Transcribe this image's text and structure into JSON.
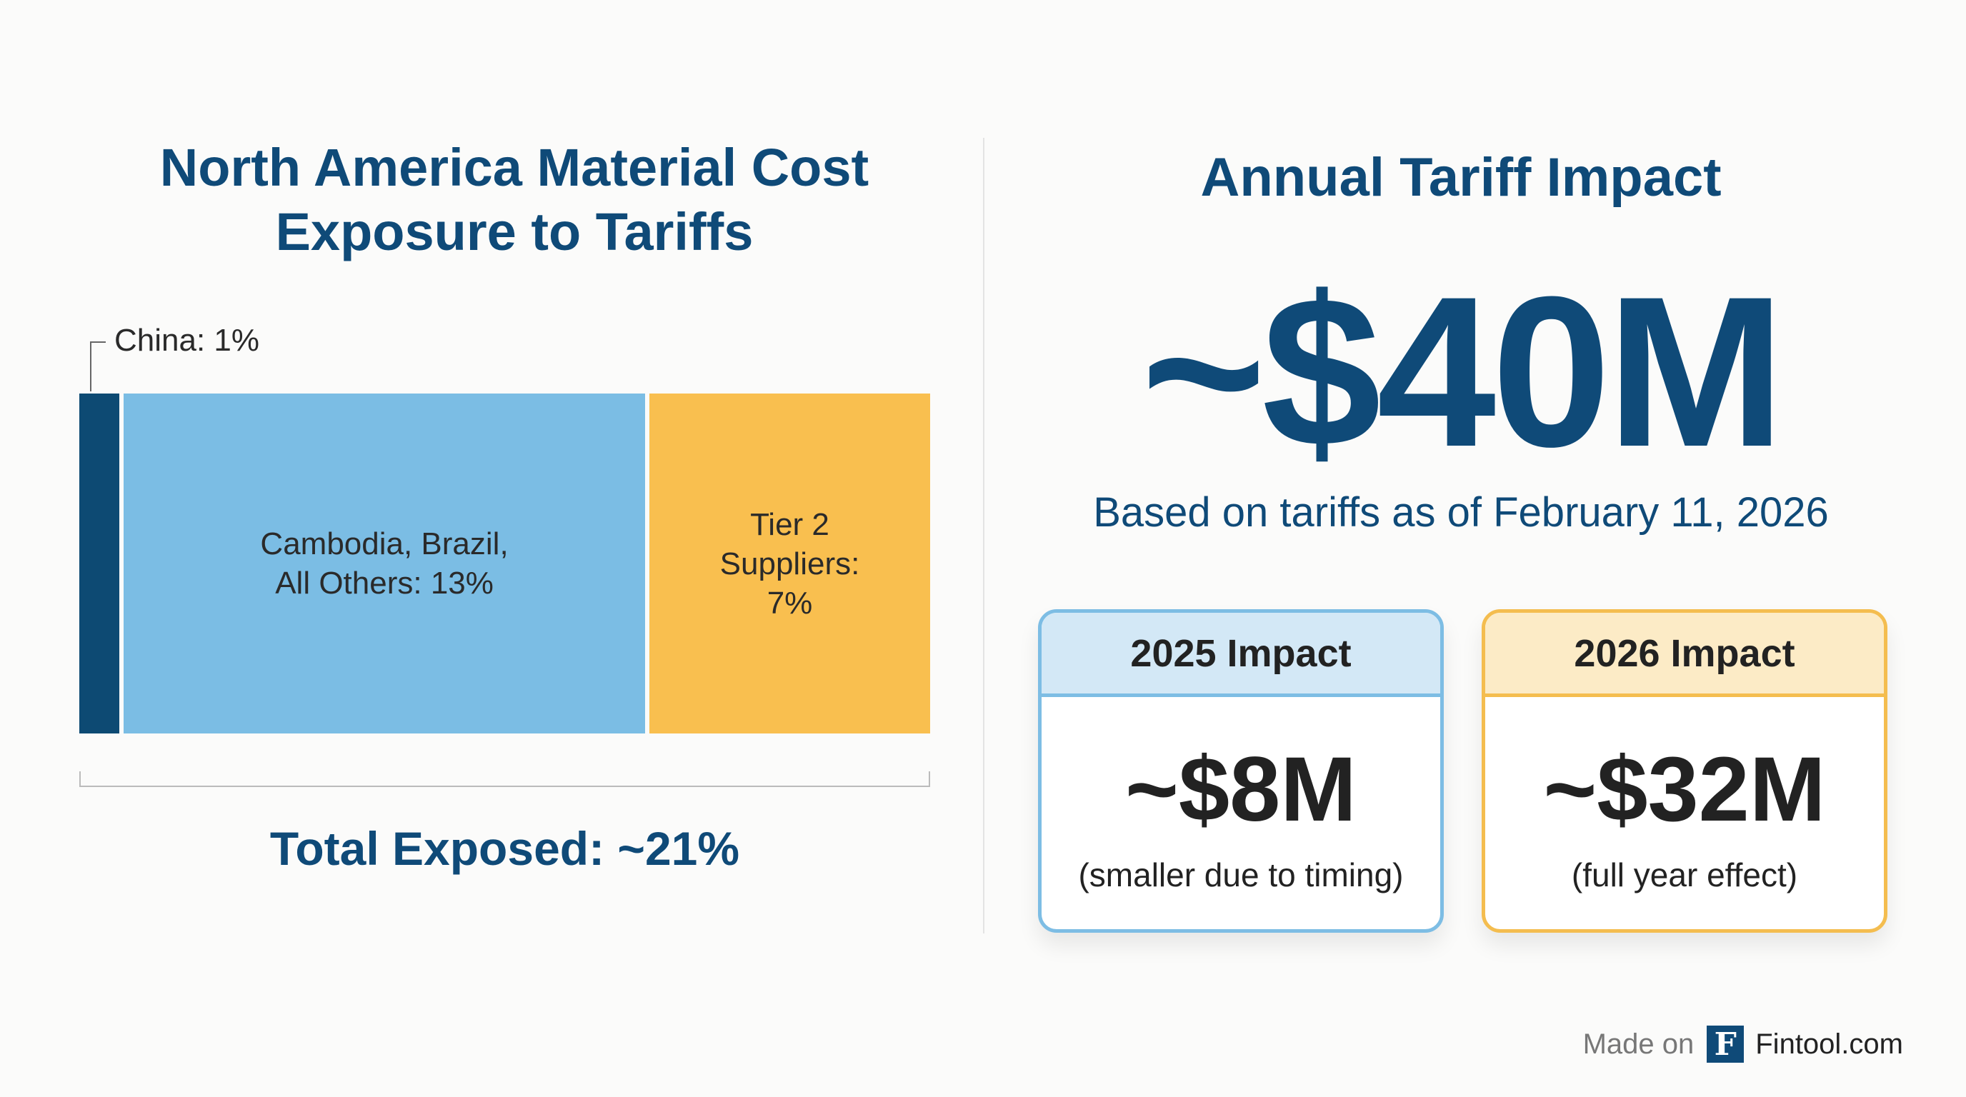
{
  "chart_data": {
    "type": "bar",
    "orientation": "stacked-horizontal",
    "title": "North America Material Cost Exposure to Tariffs",
    "unit": "%",
    "categories": [
      "China",
      "Cambodia, Brazil, All Others",
      "Tier 2 Suppliers"
    ],
    "values": [
      1,
      13,
      7
    ],
    "labels": [
      "China: 1%",
      "Cambodia, Brazil,\nAll Others: 13%",
      "Tier 2\nSuppliers:\n7%"
    ],
    "colors": [
      "#0d4a73",
      "#7bbde4",
      "#f9bf4f"
    ],
    "total_label": "Total Exposed: ~21%",
    "total": 21
  },
  "right": {
    "title": "Annual Tariff Impact",
    "big_value": "~$40M",
    "subtitle": "Based on tariffs as of February 11, 2026",
    "cards": [
      {
        "header": "2025 Impact",
        "value": "~$8M",
        "note": "(smaller due to timing)",
        "color": "#7dbde4"
      },
      {
        "header": "2026 Impact",
        "value": "~$32M",
        "note": "(full year effect)",
        "color": "#f4bd4f"
      }
    ]
  },
  "footer": {
    "made_on": "Made on",
    "logo_letter": "F",
    "brand": "Fintool.com"
  },
  "colors": {
    "title": "#0f4a78",
    "background": "#fbfbfa"
  }
}
